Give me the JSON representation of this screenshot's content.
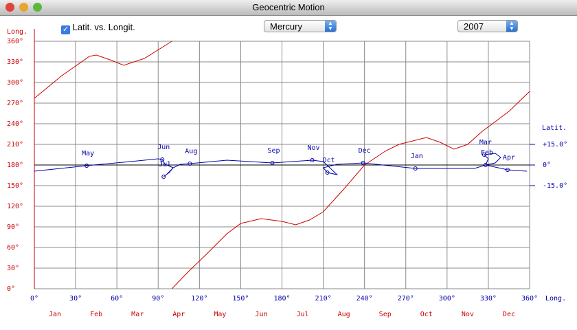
{
  "window": {
    "title": "Geocentric Motion"
  },
  "controls": {
    "checkbox": {
      "label": "Latit. vs. Longit.",
      "checked": true
    },
    "planet": "Mercury",
    "year": "2007"
  },
  "chart_data": {
    "type": "line",
    "y_label": "Long.",
    "y2_label": "Latit.",
    "x_label": "Long.",
    "xlim": [
      0,
      360
    ],
    "xticks": [
      {
        "value": 0,
        "label": "0°"
      },
      {
        "value": 30,
        "label": "30°"
      },
      {
        "value": 60,
        "label": "60°"
      },
      {
        "value": 90,
        "label": "90°"
      },
      {
        "value": 120,
        "label": "120°"
      },
      {
        "value": 150,
        "label": "150°"
      },
      {
        "value": 180,
        "label": "180°"
      },
      {
        "value": 210,
        "label": "210°"
      },
      {
        "value": 240,
        "label": "240°"
      },
      {
        "value": 270,
        "label": "270°"
      },
      {
        "value": 300,
        "label": "300°"
      },
      {
        "value": 330,
        "label": "330°"
      },
      {
        "value": 360,
        "label": "360°"
      }
    ],
    "ylim": [
      0,
      360
    ],
    "yticks": [
      {
        "value": 0,
        "label": "0°"
      },
      {
        "value": 30,
        "label": "30°"
      },
      {
        "value": 60,
        "label": "60°"
      },
      {
        "value": 90,
        "label": "90°"
      },
      {
        "value": 120,
        "label": "120°"
      },
      {
        "value": 150,
        "label": "150°"
      },
      {
        "value": 180,
        "label": "180°"
      },
      {
        "value": 210,
        "label": "210°"
      },
      {
        "value": 240,
        "label": "240°"
      },
      {
        "value": 270,
        "label": "270°"
      },
      {
        "value": 300,
        "label": "300°"
      },
      {
        "value": 330,
        "label": "330°"
      },
      {
        "value": 360,
        "label": "360°"
      }
    ],
    "y2lim": [
      -90,
      90
    ],
    "y2ticks": [
      {
        "value": 15,
        "label": "+15.0°"
      },
      {
        "value": 0,
        "label": "0°"
      },
      {
        "value": -15,
        "label": "-15.0°"
      }
    ],
    "months": [
      "Jan",
      "Feb",
      "Mar",
      "Apr",
      "May",
      "Jun",
      "Jul",
      "Aug",
      "Sep",
      "Oct",
      "Nov",
      "Dec"
    ],
    "grid": true,
    "series": [
      {
        "color": "#cc0000",
        "x": [
          0,
          20,
          40,
          45,
          55,
          65,
          80,
          100,
          100,
          100,
          112,
          125,
          140,
          150,
          165,
          180,
          190,
          200,
          210,
          225,
          240,
          255,
          265,
          285,
          295,
          305,
          315,
          325,
          345,
          360
        ],
        "values": [
          277,
          310,
          338,
          340,
          333,
          325,
          335,
          360,
          null,
          0,
          25,
          50,
          80,
          95,
          102,
          98,
          93,
          100,
          112,
          145,
          180,
          200,
          210,
          220,
          213,
          203,
          210,
          228,
          258,
          287
        ]
      },
      {
        "color": "#0000aa",
        "axis": "y2",
        "x": [
          0,
          38,
          70,
          90,
          93,
          95,
          101,
          98,
          94,
          96,
          101,
          106,
          113,
          140,
          173,
          202,
          210,
          220,
          213,
          210,
          220,
          239,
          277,
          320,
          328,
          330,
          327,
          335,
          339,
          335,
          328,
          344,
          358
        ],
        "values": [
          -4.5,
          -0.5,
          2.5,
          4.5,
          4,
          0.5,
          -2,
          -5.5,
          -8.5,
          -7,
          -2,
          0.5,
          1,
          3.5,
          1.5,
          3.5,
          2.5,
          -7,
          -5.5,
          -2,
          0.5,
          1.5,
          -2.5,
          -2.5,
          0,
          4.5,
          7.5,
          8.5,
          5.5,
          1.5,
          0,
          -3.5,
          -4.5
        ]
      }
    ],
    "annotations": [
      {
        "text": "May",
        "x": 38,
        "y": -0.5
      },
      {
        "text": "Jun",
        "x": 93,
        "y": 4
      },
      {
        "text": "Jul",
        "x": 94,
        "y": -8.5
      },
      {
        "text": "Aug",
        "x": 113,
        "y": 1
      },
      {
        "text": "Sep",
        "x": 173,
        "y": 1.5
      },
      {
        "text": "Nov",
        "x": 202,
        "y": 3.5
      },
      {
        "text": "Oct",
        "x": 213,
        "y": -5.5
      },
      {
        "text": "Dec",
        "x": 239,
        "y": 1.5
      },
      {
        "text": "Jan",
        "x": 277,
        "y": -2.5
      },
      {
        "text": "Mar",
        "x": 327,
        "y": 7.5
      },
      {
        "text": "Feb",
        "x": 328,
        "y": 0
      },
      {
        "text": "Apr",
        "x": 344,
        "y": -3.5
      }
    ]
  }
}
